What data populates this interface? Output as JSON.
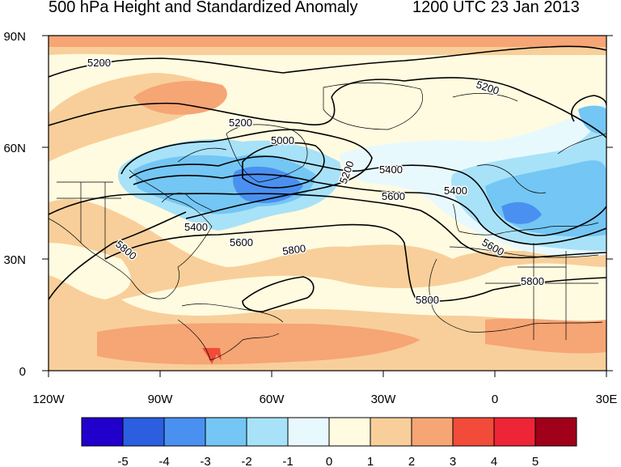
{
  "title": "500 hPa Height and Standardized Anomaly",
  "valid_time": "1200 UTC 23 Jan 2013",
  "axes": {
    "lat_labels": [
      "90N",
      "60N",
      "30N",
      "0"
    ],
    "lon_labels": [
      "120W",
      "90W",
      "60W",
      "30W",
      "0",
      "30E"
    ]
  },
  "contour_labels": [
    "5200",
    "5200",
    "5200",
    "5000",
    "5200",
    "5400",
    "5400",
    "5600",
    "5600",
    "5800",
    "5800",
    "5800",
    "5600",
    "5400",
    "5800"
  ],
  "colorbar": {
    "tick_labels": [
      "-5",
      "-4",
      "-3",
      "-2",
      "-1",
      "0",
      "1",
      "2",
      "3",
      "4",
      "5"
    ],
    "colors": [
      "#2200cc",
      "#2b5fe0",
      "#4a90f0",
      "#74c6f4",
      "#a8e2f8",
      "#e8f9fe",
      "#fffbe0",
      "#f8cf9a",
      "#f6a575",
      "#f24b3a",
      "#ee2536",
      "#a0001a"
    ]
  }
}
